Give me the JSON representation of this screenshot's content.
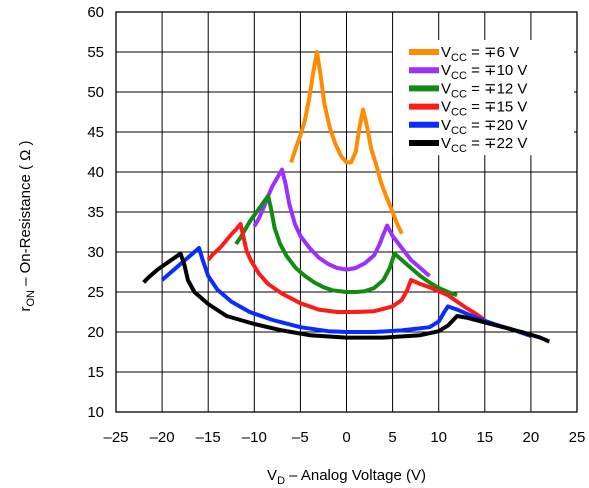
{
  "chart_data": {
    "type": "line",
    "xlabel": {
      "main": "V",
      "sub": "D",
      "rest": " – Analog Voltage (V)"
    },
    "ylabel": {
      "main": "r",
      "sub": "ON",
      "rest": " – On-Resistance ( Ω )"
    },
    "xlim": [
      -25,
      25
    ],
    "ylim": [
      10,
      60
    ],
    "xticks": [
      -25,
      -20,
      -15,
      -10,
      -5,
      0,
      5,
      10,
      15,
      20,
      25
    ],
    "yticks": [
      10,
      15,
      20,
      25,
      30,
      35,
      40,
      45,
      50,
      55,
      60
    ],
    "xtick_labels": [
      "–25",
      "–20",
      "–15",
      "–10",
      "–5",
      "0",
      "5",
      "10",
      "15",
      "20",
      "25"
    ],
    "ytick_labels": [
      "10",
      "15",
      "20",
      "25",
      "30",
      "35",
      "40",
      "45",
      "50",
      "55",
      "60"
    ],
    "grid": true,
    "legend_position": "top-right",
    "series": [
      {
        "label_main": "V",
        "label_sub": "CC",
        "label_rest": " = ∓6 V",
        "color": "#ff8c00",
        "points": [
          [
            -6,
            41.2
          ],
          [
            -5.5,
            43
          ],
          [
            -5,
            44.6
          ],
          [
            -4.5,
            46.5
          ],
          [
            -4,
            49.5
          ],
          [
            -3.6,
            52.5
          ],
          [
            -3.2,
            55
          ],
          [
            -2.8,
            52
          ],
          [
            -2.4,
            48.5
          ],
          [
            -1.8,
            45.5
          ],
          [
            -1.2,
            43.5
          ],
          [
            -0.6,
            42
          ],
          [
            0,
            41.2
          ],
          [
            0.5,
            41.2
          ],
          [
            1,
            42.5
          ],
          [
            1.4,
            45.5
          ],
          [
            1.8,
            47.8
          ],
          [
            2.2,
            45.8
          ],
          [
            2.7,
            42.8
          ],
          [
            3.2,
            41
          ],
          [
            3.8,
            38.5
          ],
          [
            4.3,
            37
          ],
          [
            5,
            35
          ],
          [
            5.5,
            33.5
          ],
          [
            6,
            32.3
          ]
        ]
      },
      {
        "label_main": "V",
        "label_sub": "CC",
        "label_rest": " = ∓10 V",
        "color": "#9b30ff",
        "points": [
          [
            -10,
            33.2
          ],
          [
            -9.5,
            34.2
          ],
          [
            -9,
            35.5
          ],
          [
            -8.5,
            37
          ],
          [
            -8,
            38.3
          ],
          [
            -7.5,
            39.3
          ],
          [
            -7,
            40.3
          ],
          [
            -6.6,
            38.5
          ],
          [
            -6.2,
            36
          ],
          [
            -5.6,
            33.5
          ],
          [
            -5,
            32
          ],
          [
            -4,
            30.5
          ],
          [
            -3,
            29.3
          ],
          [
            -2,
            28.5
          ],
          [
            -1,
            28
          ],
          [
            0,
            27.8
          ],
          [
            1,
            28
          ],
          [
            2,
            28.6
          ],
          [
            3,
            29.6
          ],
          [
            3.6,
            31
          ],
          [
            4,
            32.2
          ],
          [
            4.4,
            33.3
          ],
          [
            5,
            32
          ],
          [
            6,
            30.5
          ],
          [
            7,
            29
          ],
          [
            8,
            28
          ],
          [
            9,
            27
          ]
        ]
      },
      {
        "label_main": "V",
        "label_sub": "CC",
        "label_rest": " = ∓12 V",
        "color": "#138a13",
        "points": [
          [
            -12,
            31
          ],
          [
            -11.5,
            31.8
          ],
          [
            -11,
            32.8
          ],
          [
            -10.5,
            33.8
          ],
          [
            -10,
            34.6
          ],
          [
            -9.5,
            35.4
          ],
          [
            -9,
            36.2
          ],
          [
            -8.5,
            37
          ],
          [
            -8.2,
            35.5
          ],
          [
            -7.8,
            33
          ],
          [
            -7.2,
            31
          ],
          [
            -6.5,
            29.5
          ],
          [
            -5.5,
            28
          ],
          [
            -4.5,
            27
          ],
          [
            -3.5,
            26.2
          ],
          [
            -2.5,
            25.6
          ],
          [
            -1.5,
            25.2
          ],
          [
            0,
            25
          ],
          [
            1,
            25
          ],
          [
            2,
            25.1
          ],
          [
            3,
            25.5
          ],
          [
            4,
            26.5
          ],
          [
            4.7,
            28
          ],
          [
            5.2,
            29.8
          ],
          [
            6,
            29
          ],
          [
            7,
            28
          ],
          [
            8,
            27
          ],
          [
            9,
            26.2
          ],
          [
            10,
            25.5
          ],
          [
            11,
            25
          ],
          [
            12,
            24.6
          ]
        ]
      },
      {
        "label_main": "V",
        "label_sub": "CC",
        "label_rest": " = ∓15 V",
        "color": "#ff1a1a",
        "points": [
          [
            -15,
            29
          ],
          [
            -14.5,
            29.7
          ],
          [
            -14,
            30.2
          ],
          [
            -13.5,
            30.8
          ],
          [
            -13,
            31.5
          ],
          [
            -12.5,
            32.2
          ],
          [
            -12,
            32.8
          ],
          [
            -11.5,
            33.5
          ],
          [
            -11.2,
            32
          ],
          [
            -10.8,
            30
          ],
          [
            -10.3,
            28.8
          ],
          [
            -9.5,
            27.3
          ],
          [
            -8.5,
            26
          ],
          [
            -7,
            24.8
          ],
          [
            -5,
            23.6
          ],
          [
            -3,
            22.8
          ],
          [
            -1,
            22.5
          ],
          [
            1,
            22.5
          ],
          [
            3,
            22.6
          ],
          [
            5,
            23.2
          ],
          [
            6,
            24
          ],
          [
            6.6,
            25.3
          ],
          [
            7,
            26.5
          ],
          [
            8,
            26
          ],
          [
            9,
            25.6
          ],
          [
            10,
            25.1
          ],
          [
            11,
            24.6
          ],
          [
            12,
            23.8
          ],
          [
            13,
            23
          ],
          [
            14,
            22.3
          ],
          [
            15,
            21.5
          ]
        ]
      },
      {
        "label_main": "V",
        "label_sub": "CC",
        "label_rest": " = ∓20 V",
        "color": "#0a2cff",
        "points": [
          [
            -20,
            26.5
          ],
          [
            -19.5,
            27
          ],
          [
            -19,
            27.5
          ],
          [
            -18.5,
            28
          ],
          [
            -18,
            28.5
          ],
          [
            -17.5,
            29
          ],
          [
            -17,
            29.5
          ],
          [
            -16.5,
            30
          ],
          [
            -16,
            30.5
          ],
          [
            -15.6,
            29
          ],
          [
            -15,
            27
          ],
          [
            -14,
            25.3
          ],
          [
            -12.5,
            23.8
          ],
          [
            -10.5,
            22.5
          ],
          [
            -8,
            21.5
          ],
          [
            -5,
            20.6
          ],
          [
            -2,
            20.1
          ],
          [
            0,
            20
          ],
          [
            3,
            20
          ],
          [
            6,
            20.2
          ],
          [
            9,
            20.6
          ],
          [
            10,
            21.3
          ],
          [
            10.5,
            22.3
          ],
          [
            11,
            23.2
          ],
          [
            12,
            22.8
          ],
          [
            14,
            21.8
          ],
          [
            16,
            21
          ],
          [
            18,
            20.3
          ],
          [
            20,
            19.5
          ]
        ]
      },
      {
        "label_main": "V",
        "label_sub": "CC",
        "label_rest": " = ∓22 V",
        "color": "#000000",
        "points": [
          [
            -22,
            26.2
          ],
          [
            -21.5,
            26.8
          ],
          [
            -21,
            27.3
          ],
          [
            -20.5,
            27.8
          ],
          [
            -20,
            28.2
          ],
          [
            -19.5,
            28.6
          ],
          [
            -19,
            29
          ],
          [
            -18.5,
            29.4
          ],
          [
            -18,
            29.8
          ],
          [
            -17.6,
            28.5
          ],
          [
            -17.2,
            26.5
          ],
          [
            -16.5,
            25
          ],
          [
            -15,
            23.5
          ],
          [
            -13,
            22
          ],
          [
            -10,
            21
          ],
          [
            -7,
            20.2
          ],
          [
            -4,
            19.6
          ],
          [
            0,
            19.3
          ],
          [
            4,
            19.3
          ],
          [
            8,
            19.6
          ],
          [
            10,
            20.1
          ],
          [
            11,
            20.8
          ],
          [
            12,
            22
          ],
          [
            13,
            21.8
          ],
          [
            15,
            21.2
          ],
          [
            17,
            20.6
          ],
          [
            19,
            20
          ],
          [
            21,
            19.3
          ],
          [
            22,
            18.8
          ]
        ]
      }
    ]
  }
}
